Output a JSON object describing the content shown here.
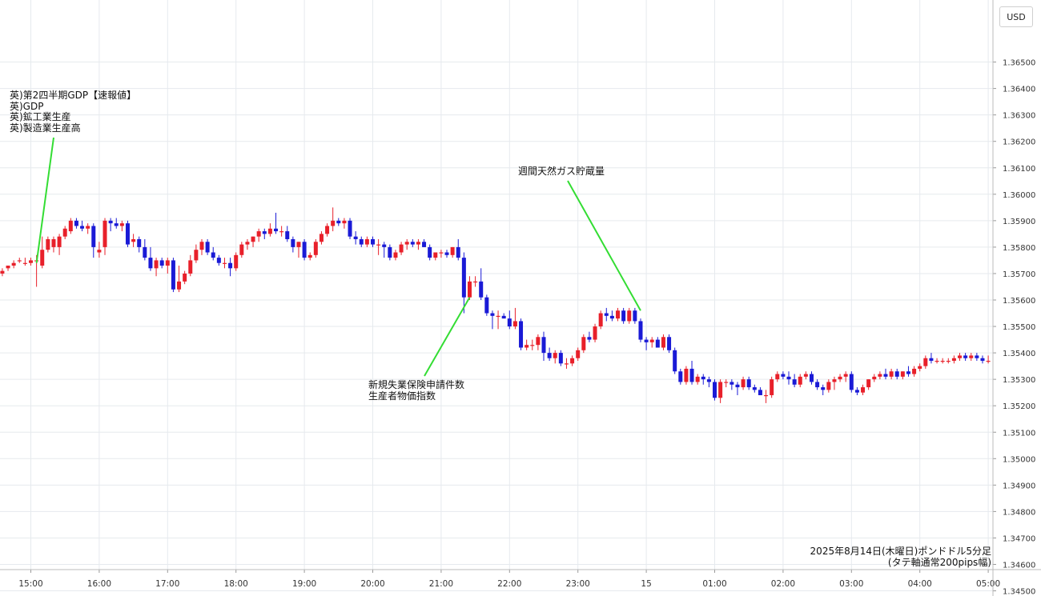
{
  "currency_label": "USD",
  "caption": {
    "line1": "2025年8月14日(木曜日)ポンドドル5分足",
    "line2": "(タテ軸通常200pips幅)"
  },
  "annotations": [
    {
      "lines": "英)第2四半期GDP【速報値】\n英)GDP\n英)鉱工業生産\n英)製造業生産高"
    },
    {
      "lines": "新規失業保険申請件数\n生産者物価指数"
    },
    {
      "lines": "週間天然ガス貯蔵量"
    }
  ],
  "colors": {
    "up": "#e8202a",
    "down": "#1a1ad6",
    "annotation_line": "#33dd33",
    "grid": "#e6eaee"
  },
  "chart_data": {
    "type": "candlestick",
    "title": "",
    "xlabel": "",
    "ylabel": "",
    "ylim": [
      1.345,
      1.366
    ],
    "y_ticks": [
      "1.36500",
      "1.36400",
      "1.36300",
      "1.36200",
      "1.36100",
      "1.36000",
      "1.35900",
      "1.35800",
      "1.35700",
      "1.35600",
      "1.35500",
      "1.35400",
      "1.35300",
      "1.35200",
      "1.35100",
      "1.35000",
      "1.34900",
      "1.34800",
      "1.34700",
      "1.34600",
      "1.34500"
    ],
    "x_ticks": [
      "15:00",
      "16:00",
      "17:00",
      "18:00",
      "19:00",
      "20:00",
      "21:00",
      "22:00",
      "23:00",
      "15",
      "01:00",
      "02:00",
      "03:00",
      "04:00",
      "05:00"
    ],
    "x_start": "14:35",
    "candle_interval_min": 5,
    "grid": true,
    "ohlc": [
      [
        1.357,
        1.3572,
        1.3569,
        1.3571
      ],
      [
        1.3572,
        1.3573,
        1.3571,
        1.3573
      ],
      [
        1.3573,
        1.3575,
        1.3572,
        1.3574
      ],
      [
        1.3575,
        1.3576,
        1.3574,
        1.3575
      ],
      [
        1.3574,
        1.3576,
        1.3573,
        1.3574
      ],
      [
        1.3574,
        1.3576,
        1.3573,
        1.3575
      ],
      [
        1.3575,
        1.3577,
        1.3565,
        1.3575
      ],
      [
        1.3573,
        1.3584,
        1.3572,
        1.3579
      ],
      [
        1.3579,
        1.3584,
        1.3578,
        1.3583
      ],
      [
        1.358,
        1.3584,
        1.3578,
        1.3583
      ],
      [
        1.358,
        1.3585,
        1.3577,
        1.3584
      ],
      [
        1.3584,
        1.3588,
        1.3583,
        1.3587
      ],
      [
        1.3586,
        1.3591,
        1.3585,
        1.359
      ],
      [
        1.359,
        1.3591,
        1.3587,
        1.3588
      ],
      [
        1.3588,
        1.359,
        1.3586,
        1.3587
      ],
      [
        1.3587,
        1.3589,
        1.3585,
        1.3588
      ],
      [
        1.3588,
        1.3589,
        1.3576,
        1.358
      ],
      [
        1.3578,
        1.3582,
        1.3576,
        1.3579
      ],
      [
        1.358,
        1.3591,
        1.3577,
        1.359
      ],
      [
        1.359,
        1.3591,
        1.3586,
        1.3589
      ],
      [
        1.3589,
        1.3591,
        1.3587,
        1.3588
      ],
      [
        1.3588,
        1.359,
        1.3586,
        1.3589
      ],
      [
        1.3589,
        1.359,
        1.358,
        1.3581
      ],
      [
        1.3582,
        1.3585,
        1.358,
        1.3583
      ],
      [
        1.3583,
        1.3584,
        1.3578,
        1.358
      ],
      [
        1.358,
        1.3583,
        1.3575,
        1.3576
      ],
      [
        1.3576,
        1.358,
        1.3571,
        1.3572
      ],
      [
        1.3572,
        1.3576,
        1.3569,
        1.3575
      ],
      [
        1.3575,
        1.3576,
        1.3572,
        1.3573
      ],
      [
        1.3573,
        1.3576,
        1.357,
        1.3575
      ],
      [
        1.3575,
        1.3576,
        1.3563,
        1.3564
      ],
      [
        1.3564,
        1.3573,
        1.3563,
        1.3567
      ],
      [
        1.3567,
        1.3571,
        1.3566,
        1.357
      ],
      [
        1.357,
        1.3577,
        1.3569,
        1.3575
      ],
      [
        1.3575,
        1.3581,
        1.3574,
        1.3579
      ],
      [
        1.3579,
        1.3583,
        1.3577,
        1.3582
      ],
      [
        1.3582,
        1.3583,
        1.3577,
        1.3578
      ],
      [
        1.3578,
        1.358,
        1.3575,
        1.3576
      ],
      [
        1.3576,
        1.3577,
        1.3573,
        1.3574
      ],
      [
        1.3574,
        1.3576,
        1.3572,
        1.3574
      ],
      [
        1.3574,
        1.3576,
        1.3569,
        1.3572
      ],
      [
        1.3572,
        1.3578,
        1.3571,
        1.3577
      ],
      [
        1.3577,
        1.3582,
        1.3576,
        1.3581
      ],
      [
        1.3581,
        1.3583,
        1.3579,
        1.3582
      ],
      [
        1.3582,
        1.3584,
        1.358,
        1.3584
      ],
      [
        1.3584,
        1.3587,
        1.3582,
        1.3586
      ],
      [
        1.3586,
        1.3587,
        1.3583,
        1.3585
      ],
      [
        1.3585,
        1.3589,
        1.3584,
        1.3587
      ],
      [
        1.3587,
        1.3593,
        1.3585,
        1.3586
      ],
      [
        1.3586,
        1.3588,
        1.3584,
        1.3586
      ],
      [
        1.3586,
        1.3588,
        1.3582,
        1.3583
      ],
      [
        1.3583,
        1.3584,
        1.3578,
        1.358
      ],
      [
        1.358,
        1.3582,
        1.3576,
        1.3582
      ],
      [
        1.3582,
        1.3583,
        1.3575,
        1.3576
      ],
      [
        1.3576,
        1.3578,
        1.3575,
        1.3577
      ],
      [
        1.3577,
        1.3583,
        1.3576,
        1.3582
      ],
      [
        1.3582,
        1.3586,
        1.3581,
        1.3585
      ],
      [
        1.3585,
        1.3589,
        1.3584,
        1.3588
      ],
      [
        1.3588,
        1.3595,
        1.3586,
        1.359
      ],
      [
        1.359,
        1.3591,
        1.3588,
        1.3589
      ],
      [
        1.3589,
        1.3591,
        1.3587,
        1.359
      ],
      [
        1.359,
        1.3591,
        1.3583,
        1.3584
      ],
      [
        1.3584,
        1.3586,
        1.3581,
        1.3583
      ],
      [
        1.3583,
        1.3584,
        1.358,
        1.3581
      ],
      [
        1.3581,
        1.3584,
        1.358,
        1.3583
      ],
      [
        1.3583,
        1.3584,
        1.358,
        1.3581
      ],
      [
        1.3581,
        1.3583,
        1.3577,
        1.3581
      ],
      [
        1.3581,
        1.3582,
        1.3576,
        1.358
      ],
      [
        1.358,
        1.3581,
        1.3575,
        1.3576
      ],
      [
        1.3576,
        1.3579,
        1.3575,
        1.3578
      ],
      [
        1.3578,
        1.3582,
        1.3577,
        1.3581
      ],
      [
        1.3581,
        1.3583,
        1.3579,
        1.3582
      ],
      [
        1.3582,
        1.3583,
        1.358,
        1.3581
      ],
      [
        1.3581,
        1.3583,
        1.3579,
        1.3582
      ],
      [
        1.3582,
        1.3583,
        1.358,
        1.358
      ],
      [
        1.358,
        1.3581,
        1.3575,
        1.3576
      ],
      [
        1.3576,
        1.3578,
        1.3575,
        1.3578
      ],
      [
        1.3578,
        1.3579,
        1.3576,
        1.3578
      ],
      [
        1.3578,
        1.3579,
        1.3576,
        1.3577
      ],
      [
        1.3577,
        1.358,
        1.3576,
        1.358
      ],
      [
        1.358,
        1.3583,
        1.3575,
        1.3576
      ],
      [
        1.3576,
        1.3578,
        1.3555,
        1.3561
      ],
      [
        1.3561,
        1.3569,
        1.356,
        1.3567
      ],
      [
        1.3567,
        1.3569,
        1.3565,
        1.3567
      ],
      [
        1.3567,
        1.3572,
        1.356,
        1.3561
      ],
      [
        1.3561,
        1.3562,
        1.3554,
        1.3555
      ],
      [
        1.3555,
        1.3556,
        1.3549,
        1.3554
      ],
      [
        1.3554,
        1.3556,
        1.3549,
        1.3554
      ],
      [
        1.3554,
        1.3555,
        1.3553,
        1.3553
      ],
      [
        1.3553,
        1.3556,
        1.3549,
        1.355
      ],
      [
        1.355,
        1.3557,
        1.3549,
        1.3552
      ],
      [
        1.3552,
        1.3553,
        1.3541,
        1.3542
      ],
      [
        1.3542,
        1.3545,
        1.3541,
        1.3543
      ],
      [
        1.3543,
        1.3545,
        1.3541,
        1.3543
      ],
      [
        1.3543,
        1.3547,
        1.3541,
        1.3546
      ],
      [
        1.3546,
        1.3548,
        1.3537,
        1.354
      ],
      [
        1.354,
        1.3542,
        1.3537,
        1.3538
      ],
      [
        1.3538,
        1.3541,
        1.3536,
        1.354
      ],
      [
        1.354,
        1.3541,
        1.3535,
        1.3536
      ],
      [
        1.3536,
        1.3538,
        1.3534,
        1.3536
      ],
      [
        1.3536,
        1.3539,
        1.3535,
        1.3538
      ],
      [
        1.3538,
        1.3542,
        1.3537,
        1.3541
      ],
      [
        1.3541,
        1.3547,
        1.354,
        1.3546
      ],
      [
        1.3546,
        1.3548,
        1.3544,
        1.3545
      ],
      [
        1.3545,
        1.3551,
        1.3544,
        1.355
      ],
      [
        1.355,
        1.3556,
        1.3549,
        1.3555
      ],
      [
        1.3555,
        1.3557,
        1.3552,
        1.3554
      ],
      [
        1.3554,
        1.3556,
        1.3552,
        1.3553
      ],
      [
        1.3553,
        1.3557,
        1.3552,
        1.3556
      ],
      [
        1.3556,
        1.3557,
        1.3551,
        1.3552
      ],
      [
        1.3552,
        1.3557,
        1.3551,
        1.3556
      ],
      [
        1.3556,
        1.3557,
        1.3551,
        1.3552
      ],
      [
        1.3552,
        1.3553,
        1.3544,
        1.3545
      ],
      [
        1.3545,
        1.3546,
        1.3541,
        1.3544
      ],
      [
        1.3544,
        1.3546,
        1.3542,
        1.3545
      ],
      [
        1.3545,
        1.3546,
        1.3542,
        1.3542
      ],
      [
        1.3542,
        1.3547,
        1.3541,
        1.3546
      ],
      [
        1.3546,
        1.3547,
        1.354,
        1.3541
      ],
      [
        1.3541,
        1.3542,
        1.3532,
        1.3533
      ],
      [
        1.3533,
        1.3534,
        1.3528,
        1.3529
      ],
      [
        1.3529,
        1.3535,
        1.3528,
        1.3534
      ],
      [
        1.3534,
        1.3537,
        1.3528,
        1.3529
      ],
      [
        1.3529,
        1.3532,
        1.3528,
        1.3531
      ],
      [
        1.3531,
        1.3532,
        1.3528,
        1.353
      ],
      [
        1.353,
        1.3531,
        1.3527,
        1.3529
      ],
      [
        1.3529,
        1.353,
        1.3522,
        1.3523
      ],
      [
        1.3523,
        1.353,
        1.3521,
        1.3529
      ],
      [
        1.3529,
        1.353,
        1.3527,
        1.3529
      ],
      [
        1.3529,
        1.353,
        1.3526,
        1.3528
      ],
      [
        1.3528,
        1.3529,
        1.3524,
        1.3527
      ],
      [
        1.3527,
        1.3531,
        1.3526,
        1.353
      ],
      [
        1.353,
        1.3531,
        1.3526,
        1.3527
      ],
      [
        1.3527,
        1.3528,
        1.3525,
        1.3526
      ],
      [
        1.3526,
        1.3527,
        1.3524,
        1.3524
      ],
      [
        1.3524,
        1.3526,
        1.3521,
        1.3524
      ],
      [
        1.3524,
        1.3531,
        1.3523,
        1.353
      ],
      [
        1.353,
        1.3533,
        1.3529,
        1.3532
      ],
      [
        1.3532,
        1.3533,
        1.353,
        1.3531
      ],
      [
        1.3531,
        1.3533,
        1.3528,
        1.353
      ],
      [
        1.353,
        1.3532,
        1.3527,
        1.3528
      ],
      [
        1.3528,
        1.3532,
        1.3527,
        1.3531
      ],
      [
        1.3531,
        1.3533,
        1.353,
        1.3532
      ],
      [
        1.3532,
        1.3533,
        1.3528,
        1.3529
      ],
      [
        1.3529,
        1.353,
        1.3526,
        1.3527
      ],
      [
        1.3527,
        1.3528,
        1.3524,
        1.3526
      ],
      [
        1.3526,
        1.353,
        1.3525,
        1.3529
      ],
      [
        1.3529,
        1.3531,
        1.3526,
        1.353
      ],
      [
        1.353,
        1.3532,
        1.3529,
        1.3531
      ],
      [
        1.3531,
        1.3533,
        1.3529,
        1.3532
      ],
      [
        1.3532,
        1.3533,
        1.3525,
        1.3526
      ],
      [
        1.3526,
        1.3527,
        1.3524,
        1.3525
      ],
      [
        1.3525,
        1.3528,
        1.3524,
        1.3527
      ],
      [
        1.3527,
        1.353,
        1.3526,
        1.353
      ],
      [
        1.353,
        1.3532,
        1.3529,
        1.3531
      ],
      [
        1.3531,
        1.3533,
        1.353,
        1.3532
      ],
      [
        1.3532,
        1.3534,
        1.353,
        1.3531
      ],
      [
        1.3531,
        1.3534,
        1.353,
        1.3533
      ],
      [
        1.3533,
        1.3534,
        1.353,
        1.3531
      ],
      [
        1.3531,
        1.3533,
        1.353,
        1.3533
      ],
      [
        1.3533,
        1.3535,
        1.3531,
        1.3532
      ],
      [
        1.3532,
        1.3535,
        1.3531,
        1.3534
      ],
      [
        1.3534,
        1.3536,
        1.3533,
        1.3535
      ],
      [
        1.3535,
        1.3539,
        1.3534,
        1.3538
      ],
      [
        1.3538,
        1.354,
        1.3536,
        1.3537
      ],
      [
        1.3537,
        1.3538,
        1.3536,
        1.3537
      ],
      [
        1.3537,
        1.3538,
        1.3536,
        1.3537
      ],
      [
        1.3537,
        1.3538,
        1.3536,
        1.3537
      ],
      [
        1.3537,
        1.3539,
        1.3536,
        1.3538
      ],
      [
        1.3538,
        1.354,
        1.3537,
        1.3539
      ],
      [
        1.3539,
        1.354,
        1.3537,
        1.3538
      ],
      [
        1.3538,
        1.354,
        1.3537,
        1.3539
      ],
      [
        1.3539,
        1.354,
        1.3537,
        1.3538
      ],
      [
        1.3538,
        1.3539,
        1.3536,
        1.3537
      ],
      [
        1.3537,
        1.3539,
        1.3536,
        1.3537
      ]
    ]
  }
}
